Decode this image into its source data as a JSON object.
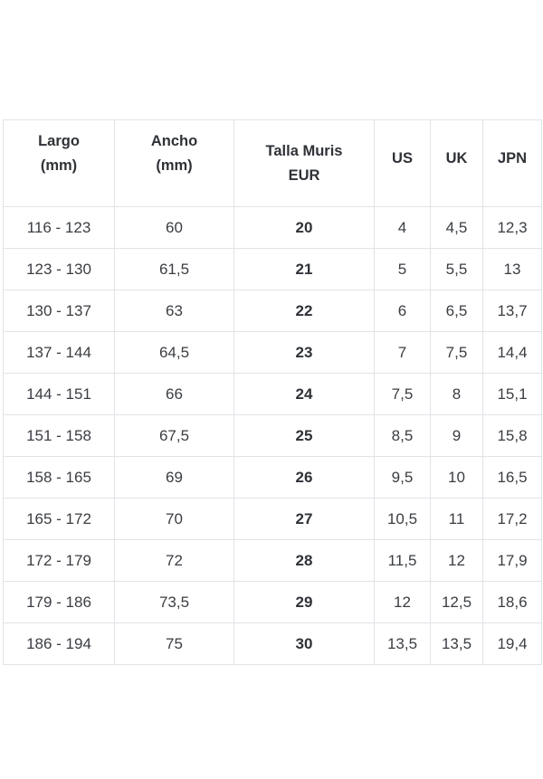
{
  "table": {
    "headers": [
      {
        "line1": "Largo",
        "line2": "(mm)"
      },
      {
        "line1": "Ancho",
        "line2": "(mm)"
      },
      {
        "line1": "Talla Muris",
        "line2": "EUR"
      },
      {
        "line1": "US",
        "line2": ""
      },
      {
        "line1": "UK",
        "line2": ""
      },
      {
        "line1": "JPN",
        "line2": ""
      }
    ],
    "rows": [
      [
        "116 - 123",
        "60",
        "20",
        "4",
        "4,5",
        "12,3"
      ],
      [
        "123 - 130",
        "61,5",
        "21",
        "5",
        "5,5",
        "13"
      ],
      [
        "130 - 137",
        "63",
        "22",
        "6",
        "6,5",
        "13,7"
      ],
      [
        "137 - 144",
        "64,5",
        "23",
        "7",
        "7,5",
        "14,4"
      ],
      [
        "144 - 151",
        "66",
        "24",
        "7,5",
        "8",
        "15,1"
      ],
      [
        "151 - 158",
        "67,5",
        "25",
        "8,5",
        "9",
        "15,8"
      ],
      [
        "158 - 165",
        "69",
        "26",
        "9,5",
        "10",
        "16,5"
      ],
      [
        "165 - 172",
        "70",
        "27",
        "10,5",
        "11",
        "17,2"
      ],
      [
        "172 - 179",
        "72",
        "28",
        "11,5",
        "12",
        "17,9"
      ],
      [
        "179 - 186",
        "73,5",
        "29",
        "12",
        "12,5",
        "18,6"
      ],
      [
        "186 - 194",
        "75",
        "30",
        "13,5",
        "13,5",
        "19,4"
      ]
    ]
  }
}
